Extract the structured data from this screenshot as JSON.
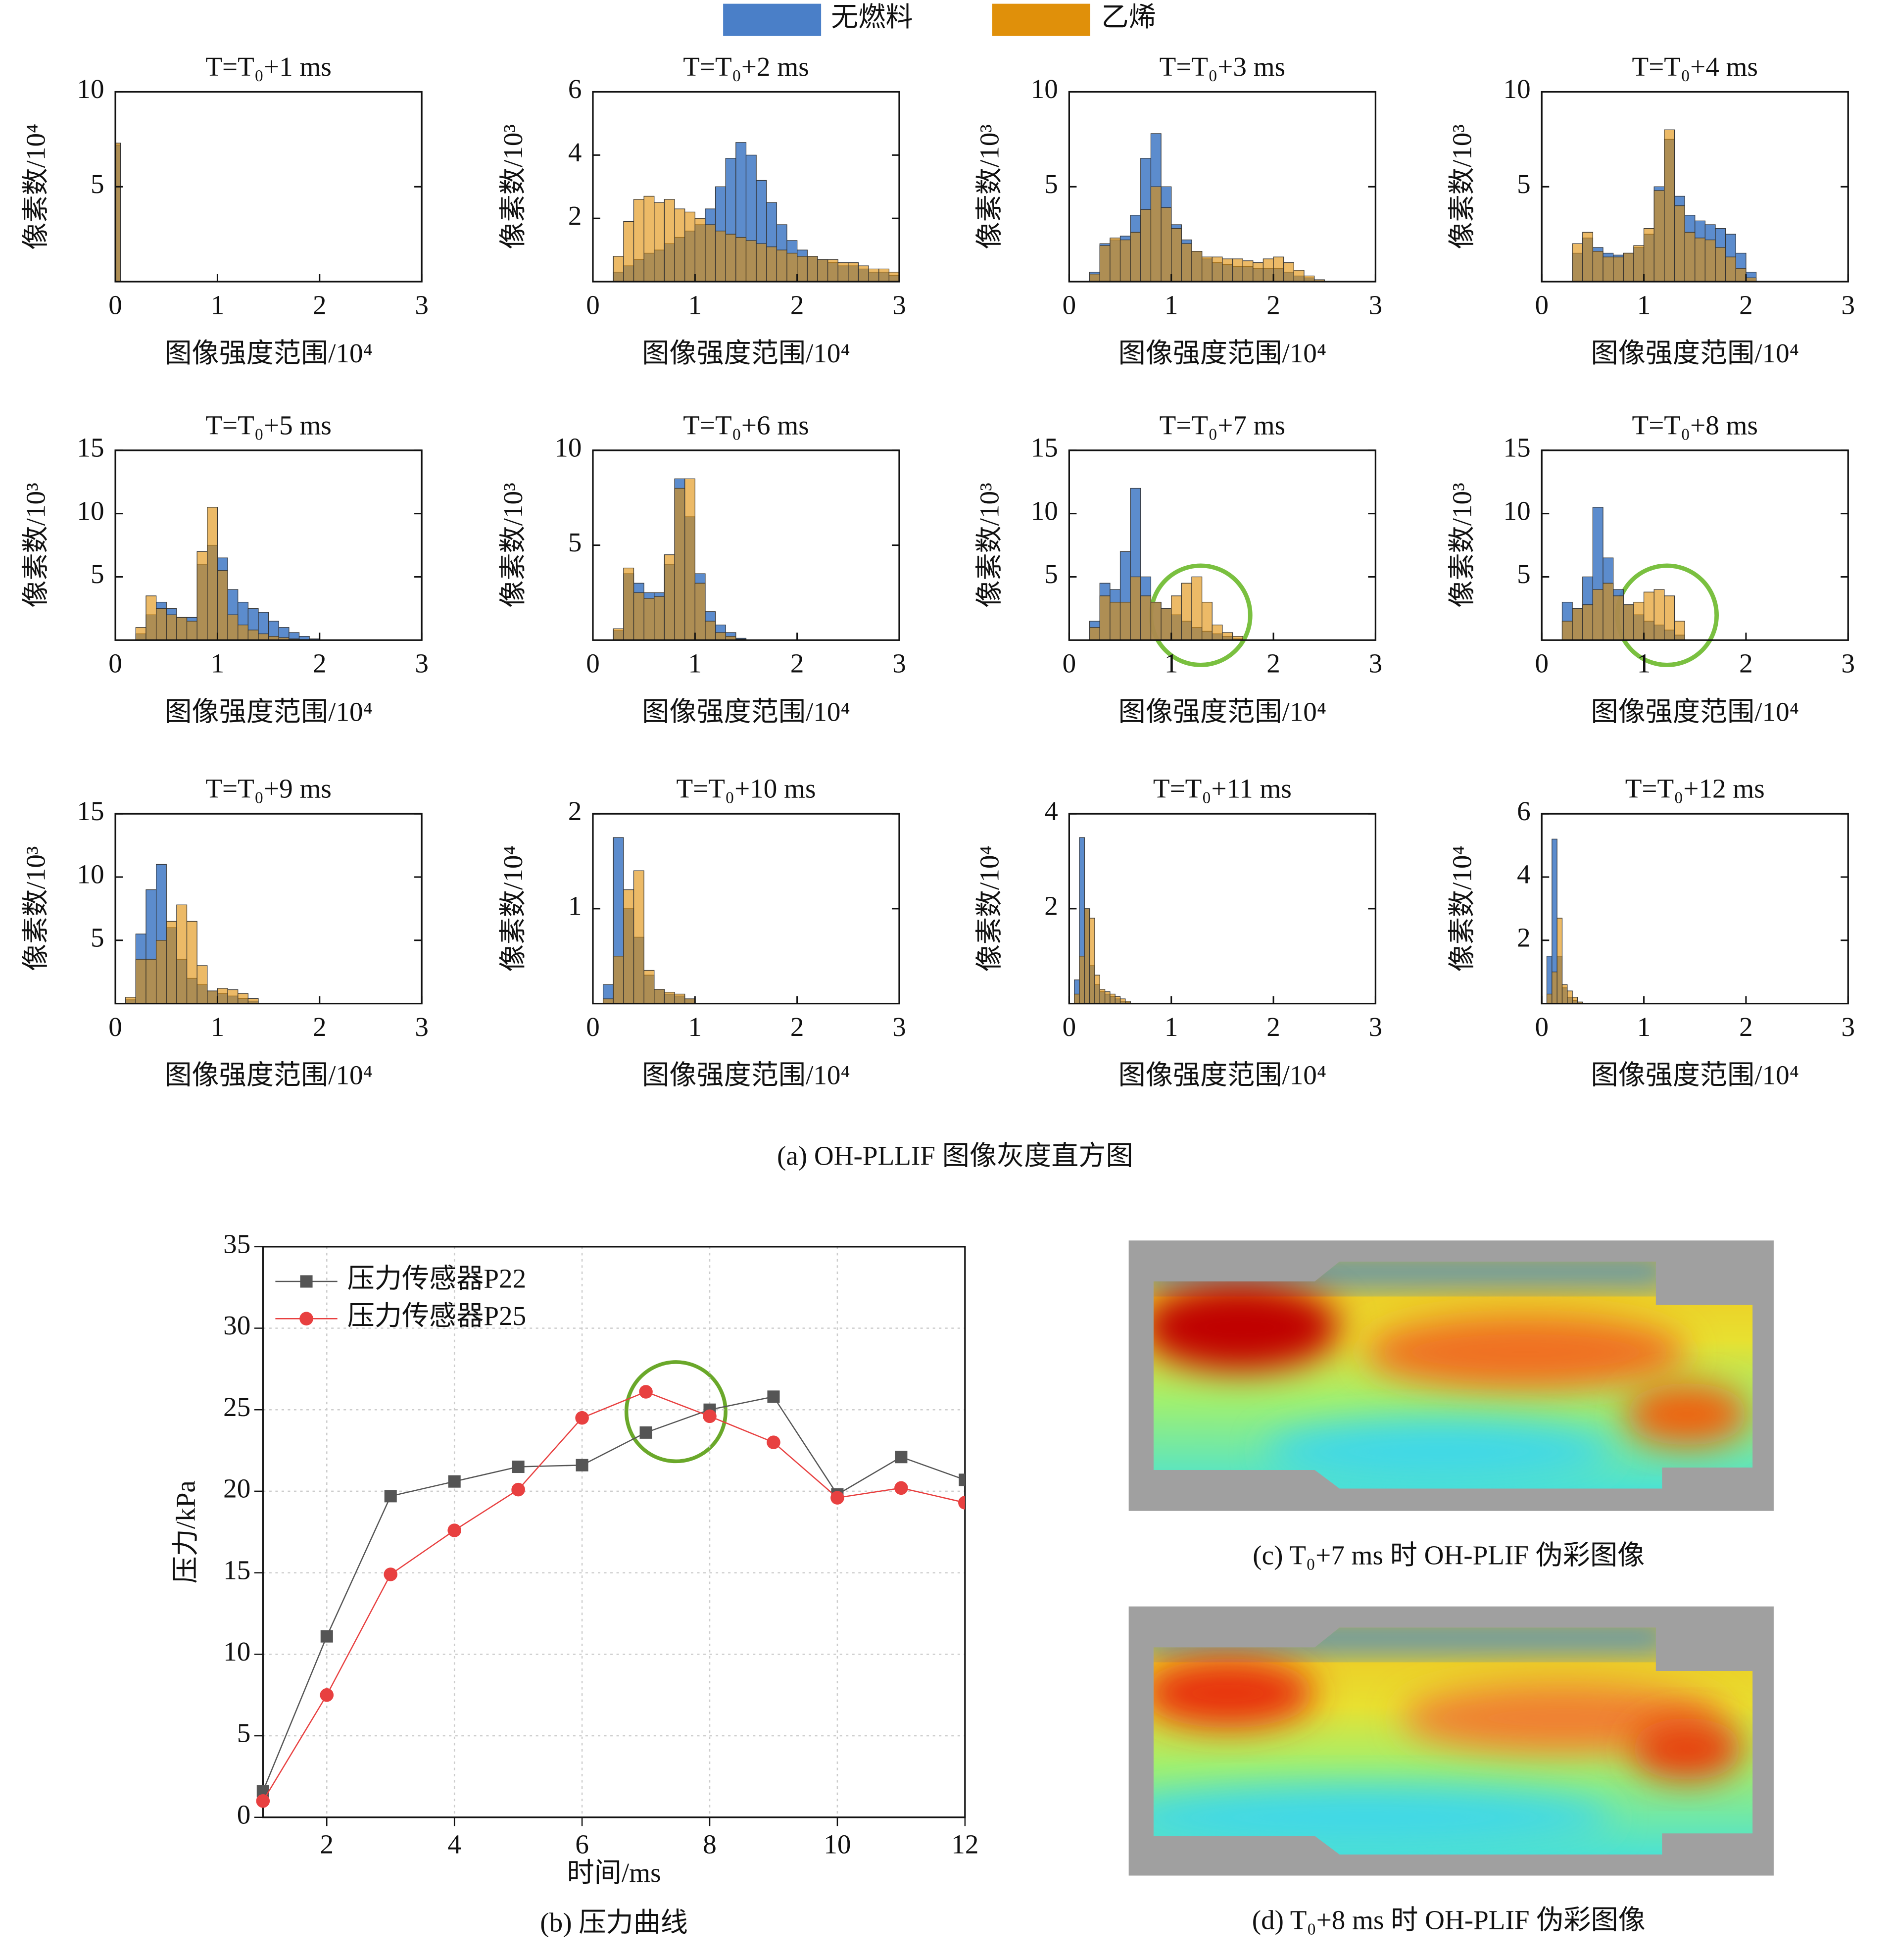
{
  "legend": [
    {
      "name": "无燃料",
      "color": "#4a7fc8"
    },
    {
      "name": "乙烯",
      "color": "#e0900a"
    }
  ],
  "figure_captions": {
    "a": "(a) OH-PLLIF 图像灰度直方图",
    "b": "(b) 压力曲线",
    "c": "(c) T₀+7 ms 时 OH-PLIF 伪彩图像",
    "d": "(d) T₀+8 ms 时 OH-PLIF 伪彩图像"
  },
  "chart_data": [
    {
      "type": "histogram",
      "title": "T=T₀+1 ms",
      "x_label": "图像强度范围/10⁴",
      "y_label": "像素数/10⁴",
      "xlim": [
        0,
        3
      ],
      "xticks": [
        0,
        1,
        2,
        3
      ],
      "ylim": [
        0,
        10
      ],
      "yticks": [
        5,
        10
      ],
      "bins": [
        0,
        0.05
      ],
      "series": [
        {
          "values": [
            7.2
          ]
        },
        {
          "values": [
            7.3
          ]
        }
      ]
    },
    {
      "type": "histogram",
      "title": "T=T₀+2 ms",
      "x_label": "图像强度范围/10⁴",
      "y_label": "像素数/10³",
      "xlim": [
        0,
        3
      ],
      "xticks": [
        0,
        1,
        2,
        3
      ],
      "ylim": [
        0,
        6
      ],
      "yticks": [
        2,
        4,
        6
      ],
      "bins": [
        0.2,
        0.3,
        0.4,
        0.5,
        0.6,
        0.7,
        0.8,
        0.9,
        1.0,
        1.1,
        1.2,
        1.3,
        1.4,
        1.5,
        1.6,
        1.7,
        1.8,
        1.9,
        2.0,
        2.1,
        2.2,
        2.3,
        2.4,
        2.5,
        2.6,
        2.7,
        2.8,
        2.9,
        3.0
      ],
      "series": [
        {
          "values": [
            0.3,
            0.5,
            0.7,
            0.9,
            1.0,
            1.2,
            1.4,
            1.6,
            1.8,
            2.3,
            3.0,
            3.9,
            4.4,
            4.0,
            3.2,
            2.5,
            1.8,
            1.3,
            1.0,
            0.8,
            0.7,
            0.6,
            0.5,
            0.5,
            0.4,
            0.3,
            0.3,
            0.2
          ]
        },
        {
          "values": [
            0.8,
            1.9,
            2.6,
            2.7,
            2.5,
            2.6,
            2.3,
            2.2,
            2.0,
            1.8,
            1.6,
            1.5,
            1.4,
            1.3,
            1.2,
            1.1,
            1.0,
            0.9,
            0.8,
            0.8,
            0.7,
            0.7,
            0.6,
            0.6,
            0.5,
            0.4,
            0.4,
            0.3
          ]
        }
      ]
    },
    {
      "type": "histogram",
      "title": "T=T₀+3 ms",
      "x_label": "图像强度范围/10⁴",
      "y_label": "像素数/10³",
      "xlim": [
        0,
        3
      ],
      "xticks": [
        0,
        1,
        2,
        3
      ],
      "ylim": [
        0,
        10
      ],
      "yticks": [
        5,
        10
      ],
      "bins": [
        0.2,
        0.3,
        0.4,
        0.5,
        0.6,
        0.7,
        0.8,
        0.9,
        1.0,
        1.1,
        1.2,
        1.3,
        1.4,
        1.5,
        1.6,
        1.7,
        1.8,
        1.9,
        2.0,
        2.1,
        2.2,
        2.3,
        2.4,
        2.5
      ],
      "series": [
        {
          "values": [
            0.5,
            2.0,
            2.2,
            2.4,
            3.5,
            6.5,
            7.8,
            5.0,
            3.0,
            2.2,
            1.6,
            1.2,
            1.0,
            0.9,
            0.8,
            0.8,
            0.7,
            0.7,
            0.7,
            0.5,
            0.3,
            0.2,
            0.1
          ]
        },
        {
          "values": [
            0.4,
            1.9,
            2.3,
            2.2,
            2.6,
            3.8,
            5.0,
            3.9,
            2.8,
            2.0,
            1.6,
            1.3,
            1.3,
            1.2,
            1.2,
            1.1,
            1.0,
            1.2,
            1.3,
            1.0,
            0.6,
            0.3,
            0.1
          ]
        }
      ]
    },
    {
      "type": "histogram",
      "title": "T=T₀+4 ms",
      "x_label": "图像强度范围/10⁴",
      "y_label": "像素数/10³",
      "xlim": [
        0,
        3
      ],
      "xticks": [
        0,
        1,
        2,
        3
      ],
      "ylim": [
        0,
        10
      ],
      "yticks": [
        5,
        10
      ],
      "bins": [
        0.3,
        0.4,
        0.5,
        0.6,
        0.7,
        0.8,
        0.9,
        1.0,
        1.1,
        1.2,
        1.3,
        1.4,
        1.5,
        1.6,
        1.7,
        1.8,
        1.9,
        2.0,
        2.1
      ],
      "series": [
        {
          "values": [
            1.5,
            2.3,
            1.8,
            1.5,
            1.4,
            1.5,
            1.8,
            2.5,
            5.0,
            7.5,
            4.5,
            3.5,
            3.2,
            3.0,
            2.8,
            2.5,
            1.5,
            0.5
          ]
        },
        {
          "values": [
            2.0,
            2.6,
            1.6,
            1.3,
            1.3,
            1.5,
            1.9,
            2.8,
            4.8,
            8.0,
            4.0,
            2.6,
            2.3,
            2.2,
            1.8,
            1.3,
            0.7,
            0.2
          ]
        }
      ]
    },
    {
      "type": "histogram",
      "title": "T=T₀+5 ms",
      "x_label": "图像强度范围/10⁴",
      "y_label": "像素数/10³",
      "xlim": [
        0,
        3
      ],
      "xticks": [
        0,
        1,
        2,
        3
      ],
      "ylim": [
        0,
        15
      ],
      "yticks": [
        5,
        10,
        15
      ],
      "bins": [
        0.2,
        0.3,
        0.4,
        0.5,
        0.6,
        0.7,
        0.8,
        0.9,
        1.0,
        1.1,
        1.2,
        1.3,
        1.4,
        1.5,
        1.6,
        1.7,
        1.8,
        1.9,
        2.0
      ],
      "series": [
        {
          "values": [
            0.5,
            2.0,
            3.0,
            2.5,
            1.8,
            1.8,
            6.0,
            7.5,
            6.5,
            4.0,
            3.0,
            2.5,
            2.2,
            1.5,
            1.0,
            0.6,
            0.3,
            0.1
          ]
        },
        {
          "values": [
            1.0,
            3.5,
            2.5,
            2.0,
            1.8,
            1.5,
            7.0,
            10.5,
            5.5,
            2.0,
            1.2,
            0.8,
            0.5,
            0.3,
            0.2,
            0.1,
            0.05,
            0
          ]
        }
      ]
    },
    {
      "type": "histogram",
      "title": "T=T₀+6 ms",
      "x_label": "图像强度范围/10⁴",
      "y_label": "像素数/10³",
      "xlim": [
        0,
        3
      ],
      "xticks": [
        0,
        1,
        2,
        3
      ],
      "ylim": [
        0,
        10
      ],
      "yticks": [
        5,
        10
      ],
      "bins": [
        0.2,
        0.3,
        0.4,
        0.5,
        0.6,
        0.7,
        0.8,
        0.9,
        1.0,
        1.1,
        1.2,
        1.3,
        1.4,
        1.5
      ],
      "series": [
        {
          "values": [
            0.5,
            3.5,
            3.0,
            2.5,
            2.5,
            4.0,
            8.5,
            6.5,
            3.5,
            1.5,
            0.8,
            0.4,
            0.1
          ]
        },
        {
          "values": [
            0.6,
            3.8,
            2.5,
            2.2,
            2.3,
            4.5,
            8.0,
            8.5,
            3.0,
            1.0,
            0.4,
            0.2,
            0.05
          ]
        }
      ]
    },
    {
      "type": "histogram",
      "title": "T=T₀+7 ms",
      "x_label": "图像强度范围/10⁴",
      "y_label": "像素数/10³",
      "xlim": [
        0,
        3
      ],
      "xticks": [
        0,
        1,
        2,
        3
      ],
      "ylim": [
        0,
        15
      ],
      "yticks": [
        5,
        10,
        15
      ],
      "bins": [
        0.2,
        0.3,
        0.4,
        0.5,
        0.6,
        0.7,
        0.8,
        0.9,
        1.0,
        1.1,
        1.2,
        1.3,
        1.4,
        1.5,
        1.6,
        1.7
      ],
      "series": [
        {
          "values": [
            1.5,
            4.5,
            4.0,
            7.0,
            12.0,
            5.0,
            3.0,
            2.5,
            2.0,
            1.5,
            1.0,
            0.7,
            0.5,
            0.3,
            0.1
          ]
        },
        {
          "values": [
            1.0,
            3.5,
            3.0,
            3.0,
            5.0,
            3.5,
            3.0,
            2.5,
            3.5,
            4.5,
            5.0,
            3.0,
            1.2,
            0.6,
            0.3
          ]
        }
      ]
    },
    {
      "type": "histogram",
      "title": "T=T₀+8 ms",
      "x_label": "图像强度范围/10⁴",
      "y_label": "像素数/10³",
      "xlim": [
        0,
        3
      ],
      "xticks": [
        0,
        1,
        2,
        3
      ],
      "ylim": [
        0,
        15
      ],
      "yticks": [
        5,
        10,
        15
      ],
      "bins": [
        0.2,
        0.3,
        0.4,
        0.5,
        0.6,
        0.7,
        0.8,
        0.9,
        1.0,
        1.1,
        1.2,
        1.3,
        1.4
      ],
      "series": [
        {
          "values": [
            3.0,
            2.5,
            5.0,
            10.5,
            6.5,
            4.0,
            2.8,
            2.0,
            1.5,
            1.2,
            0.8,
            0.4
          ]
        },
        {
          "values": [
            1.5,
            2.5,
            2.8,
            4.0,
            4.5,
            3.5,
            2.8,
            3.0,
            3.8,
            4.0,
            3.5,
            1.5
          ]
        }
      ]
    },
    {
      "type": "histogram",
      "title": "T=T₀+9 ms",
      "x_label": "图像强度范围/10⁴",
      "y_label": "像素数/10³",
      "xlim": [
        0,
        3
      ],
      "xticks": [
        0,
        1,
        2,
        3
      ],
      "ylim": [
        0,
        15
      ],
      "yticks": [
        5,
        10,
        15
      ],
      "bins": [
        0.1,
        0.2,
        0.3,
        0.4,
        0.5,
        0.6,
        0.7,
        0.8,
        0.9,
        1.0,
        1.1,
        1.2,
        1.3,
        1.4
      ],
      "series": [
        {
          "values": [
            0.3,
            5.5,
            9.0,
            11.0,
            6.0,
            3.5,
            2.0,
            1.5,
            1.0,
            0.8,
            0.6,
            0.4,
            0.2
          ]
        },
        {
          "values": [
            0.5,
            3.5,
            3.5,
            5.0,
            6.5,
            7.8,
            6.5,
            3.0,
            1.0,
            1.2,
            1.1,
            0.8,
            0.4
          ]
        }
      ]
    },
    {
      "type": "histogram",
      "title": "T=T₀+10 ms",
      "x_label": "图像强度范围/10⁴",
      "y_label": "像素数/10⁴",
      "xlim": [
        0,
        3
      ],
      "xticks": [
        0,
        1,
        2,
        3
      ],
      "ylim": [
        0,
        2
      ],
      "yticks": [
        1,
        2
      ],
      "bins": [
        0.1,
        0.2,
        0.3,
        0.4,
        0.5,
        0.6,
        0.7,
        0.8,
        0.9,
        1.0
      ],
      "series": [
        {
          "values": [
            0.2,
            1.75,
            1.0,
            0.7,
            0.3,
            0.15,
            0.1,
            0.08,
            0.05
          ]
        },
        {
          "values": [
            0.05,
            0.5,
            1.2,
            1.4,
            0.35,
            0.15,
            0.12,
            0.1,
            0.05
          ]
        }
      ]
    },
    {
      "type": "histogram",
      "title": "T=T₀+11 ms",
      "x_label": "图像强度范围/10⁴",
      "y_label": "像素数/10⁴",
      "xlim": [
        0,
        3
      ],
      "xticks": [
        0,
        1,
        2,
        3
      ],
      "ylim": [
        0,
        4
      ],
      "yticks": [
        2,
        4
      ],
      "bins": [
        0.05,
        0.1,
        0.15,
        0.2,
        0.25,
        0.3,
        0.35,
        0.4,
        0.45,
        0.5,
        0.55,
        0.6
      ],
      "series": [
        {
          "values": [
            0.5,
            3.5,
            2.0,
            0.8,
            0.4,
            0.25,
            0.2,
            0.15,
            0.1,
            0.05,
            0.03
          ]
        },
        {
          "values": [
            0.2,
            1.0,
            2.0,
            1.8,
            0.6,
            0.3,
            0.25,
            0.2,
            0.15,
            0.1,
            0.05
          ]
        }
      ]
    },
    {
      "type": "histogram",
      "title": "T=T₀+12 ms",
      "x_label": "图像强度范围/10⁴",
      "y_label": "像素数/10⁴",
      "xlim": [
        0,
        3
      ],
      "xticks": [
        0,
        1,
        2,
        3
      ],
      "ylim": [
        0,
        6
      ],
      "yticks": [
        2,
        4,
        6
      ],
      "bins": [
        0.05,
        0.1,
        0.15,
        0.2,
        0.25,
        0.3,
        0.35,
        0.4
      ],
      "series": [
        {
          "values": [
            1.5,
            5.2,
            1.5,
            0.5,
            0.2,
            0.1,
            0.05
          ]
        },
        {
          "values": [
            0.3,
            1.0,
            2.7,
            0.6,
            0.4,
            0.2,
            0.05
          ]
        }
      ]
    },
    {
      "type": "line",
      "x_label": "时间/ms",
      "y_label": "压力/kPa",
      "x": [
        1,
        2,
        3,
        4,
        5,
        6,
        7,
        8,
        9,
        10,
        11,
        12
      ],
      "xlim": [
        1,
        12
      ],
      "xticks": [
        2,
        4,
        6,
        8,
        10,
        12
      ],
      "ylim": [
        0,
        35
      ],
      "yticks": [
        0,
        5,
        10,
        15,
        20,
        25,
        30,
        35
      ],
      "grid": true,
      "series": [
        {
          "name": "压力传感器P22",
          "color": "#555555",
          "marker": "square",
          "values": [
            1.6,
            11.1,
            19.7,
            20.6,
            21.5,
            21.6,
            23.6,
            25.0,
            25.8,
            19.8,
            22.1,
            20.7
          ]
        },
        {
          "name": "压力传感器P25",
          "color": "#e84040",
          "marker": "circle",
          "values": [
            1.0,
            7.5,
            14.9,
            17.6,
            20.1,
            24.5,
            26.1,
            24.6,
            23.0,
            19.6,
            20.2,
            19.3
          ]
        }
      ]
    }
  ]
}
